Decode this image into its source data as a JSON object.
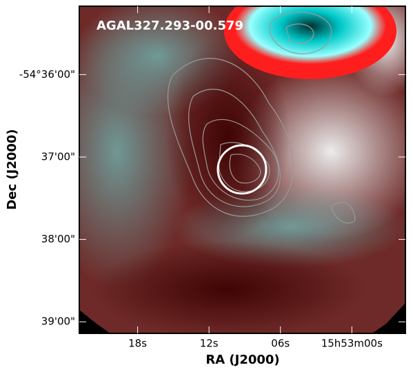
{
  "chart_data": {
    "type": "image",
    "title": "AGAL327.293-00.579",
    "xlabel": "RA (J2000)",
    "ylabel": "Dec (J2000)",
    "xlim": [
      22.9,
      -4.5
    ],
    "xticks": [
      {
        "value": 18,
        "label": "18s"
      },
      {
        "value": 12,
        "label": "12s"
      },
      {
        "value": 6,
        "label": "06s"
      },
      {
        "value": 0,
        "label": "15h53m00s"
      }
    ],
    "ylim": [
      35.17,
      39.14
    ],
    "yticks": [
      {
        "value": 36,
        "label": "-54°36'00\""
      },
      {
        "value": 37,
        "label": "37'00\""
      },
      {
        "value": 38,
        "label": "38'00\""
      },
      {
        "value": 39,
        "label": "39'00\""
      }
    ]
  }
}
